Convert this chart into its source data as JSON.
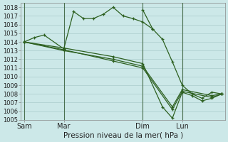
{
  "xlabel": "Pression niveau de la mer( hPa )",
  "bg_color": "#cce8e8",
  "grid_color": "#aacccc",
  "line_color": "#2d6020",
  "vline_color": "#4a7050",
  "ylim": [
    1005,
    1018.5
  ],
  "ytick_min": 1005,
  "ytick_max": 1018,
  "xtick_labels": [
    "Sam",
    "Mar",
    "Dim",
    "Lun"
  ],
  "xtick_positions": [
    0,
    24,
    72,
    96
  ],
  "xlim": [
    -2,
    122
  ],
  "series": [
    {
      "x": [
        0,
        6,
        12,
        24,
        30,
        36,
        42,
        48,
        54,
        60,
        66,
        72,
        78,
        84,
        90,
        96,
        102,
        108,
        114,
        120
      ],
      "y": [
        1014.0,
        1014.5,
        1014.8,
        1013.2,
        1017.5,
        1016.7,
        1016.7,
        1017.2,
        1018.0,
        1017.0,
        1016.7,
        1016.3,
        1015.5,
        1014.3,
        1011.7,
        1009.0,
        1008.0,
        1007.5,
        1008.2,
        1008.0
      ]
    },
    {
      "x": [
        0,
        24,
        54,
        72,
        84,
        90,
        96,
        102,
        108,
        114,
        120
      ],
      "y": [
        1014.0,
        1013.3,
        1012.3,
        1011.5,
        1006.5,
        1005.2,
        1008.2,
        1007.8,
        1007.2,
        1007.5,
        1008.0
      ]
    },
    {
      "x": [
        0,
        24,
        54,
        72,
        90,
        96,
        114,
        120
      ],
      "y": [
        1014.0,
        1013.0,
        1012.0,
        1011.2,
        1006.5,
        1008.5,
        1007.8,
        1008.0
      ]
    },
    {
      "x": [
        0,
        24,
        54,
        72,
        90,
        96,
        114,
        120
      ],
      "y": [
        1014.0,
        1013.1,
        1011.8,
        1011.0,
        1006.2,
        1008.3,
        1007.6,
        1008.0
      ]
    }
  ],
  "series1_extra": {
    "x": [
      72,
      78
    ],
    "y": [
      1017.7,
      1015.5
    ]
  }
}
